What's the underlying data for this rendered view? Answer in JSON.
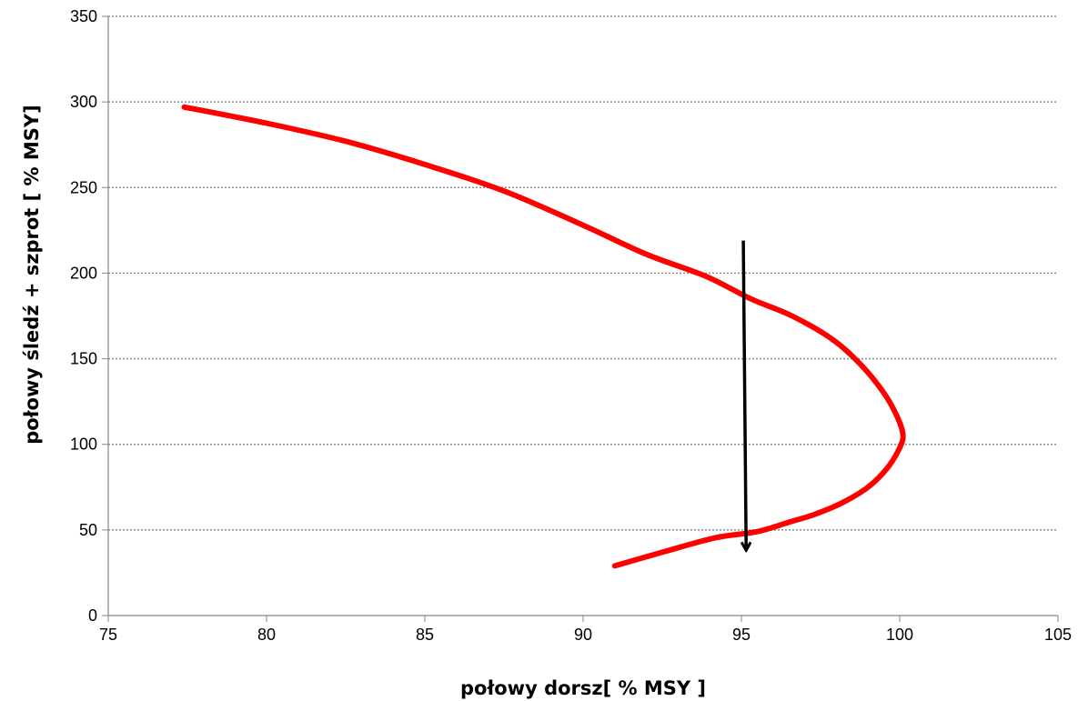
{
  "chart_data": {
    "type": "line",
    "title": "",
    "xlabel": "połowy dorsz[ % MSY ]",
    "ylabel": "połowy śledź + szprot [ % MSY]",
    "xlim": [
      75,
      105
    ],
    "ylim": [
      0,
      350
    ],
    "x_ticks": [
      75,
      80,
      85,
      90,
      95,
      100,
      105
    ],
    "y_ticks": [
      0,
      50,
      100,
      150,
      200,
      250,
      300,
      350
    ],
    "grid": "horizontal dotted",
    "legend": "none",
    "series": [
      {
        "color": "#ff0000",
        "points": [
          [
            77.4,
            297
          ],
          [
            80,
            287.6
          ],
          [
            82.5,
            277
          ],
          [
            85,
            263.5
          ],
          [
            87.5,
            248
          ],
          [
            90,
            228
          ],
          [
            92,
            211
          ],
          [
            93.9,
            198
          ],
          [
            95.3,
            185
          ],
          [
            96.6,
            175
          ],
          [
            97.9,
            161
          ],
          [
            98.8,
            146
          ],
          [
            99.5,
            130
          ],
          [
            99.9,
            117
          ],
          [
            100.1,
            106
          ],
          [
            100,
            98
          ],
          [
            99.6,
            86
          ],
          [
            99,
            75
          ],
          [
            98.2,
            66
          ],
          [
            97.3,
            59
          ],
          [
            96.5,
            54.5
          ],
          [
            95.5,
            49
          ],
          [
            94.2,
            45.5
          ],
          [
            92.6,
            37.5
          ],
          [
            91,
            29
          ]
        ]
      }
    ],
    "annotations": [
      {
        "type": "arrow",
        "color": "#000000",
        "from": [
          95.06,
          219
        ],
        "to": [
          95.15,
          37
        ]
      }
    ]
  }
}
